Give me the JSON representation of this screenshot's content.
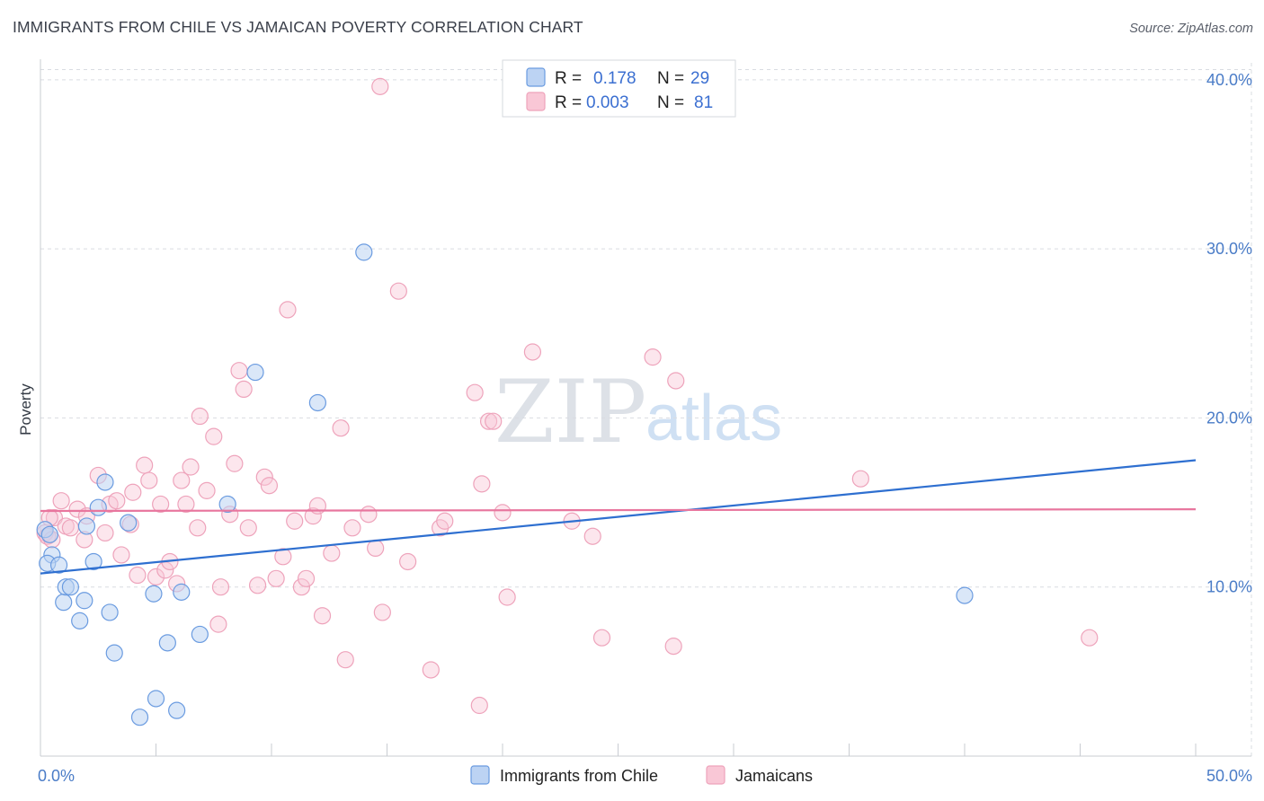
{
  "title": "IMMIGRANTS FROM CHILE VS JAMAICAN POVERTY CORRELATION CHART",
  "source": "Source: ZipAtlas.com",
  "watermark": {
    "zip": "ZIP",
    "atlas": "atlas"
  },
  "colors": {
    "blue": "#6a9be0",
    "blue_fill": "#bcd3f3",
    "blue_line": "#2e6fd0",
    "pink": "#eea3bb",
    "pink_fill": "#f9c7d6",
    "pink_line": "#e8769e",
    "tick": "#4a7cc7"
  },
  "legend": {
    "row1": {
      "r_label": "R = ",
      "r_value": "0.178",
      "n_label": "N = ",
      "n_value": "29"
    },
    "row2": {
      "r_label": "R = ",
      "r_value": "0.003",
      "n_label": "N = ",
      "n_value": "81"
    }
  },
  "chart_data": {
    "type": "scatter",
    "title": "IMMIGRANTS FROM CHILE VS JAMAICAN POVERTY CORRELATION CHART",
    "xlabel": "",
    "ylabel": "Poverty",
    "xlim": [
      0,
      50
    ],
    "ylim": [
      0,
      41
    ],
    "x_tick_labels": [
      "0.0%",
      "50.0%"
    ],
    "y_ticks": [
      10,
      20,
      30,
      40
    ],
    "y_tick_labels": [
      "10.0%",
      "20.0%",
      "30.0%",
      "40.0%"
    ],
    "grid": true,
    "legend_position": "top-center",
    "series": [
      {
        "name": "Immigrants from Chile",
        "color": "#6a9be0",
        "trend": [
          [
            0,
            10.8
          ],
          [
            50,
            17.5
          ]
        ],
        "points": [
          [
            0.2,
            13.4
          ],
          [
            0.4,
            13.1
          ],
          [
            0.5,
            11.9
          ],
          [
            0.3,
            11.4
          ],
          [
            0.8,
            11.3
          ],
          [
            1.0,
            9.1
          ],
          [
            1.1,
            10.0
          ],
          [
            1.3,
            10.0
          ],
          [
            1.7,
            8.0
          ],
          [
            1.9,
            9.2
          ],
          [
            2.0,
            13.6
          ],
          [
            2.3,
            11.5
          ],
          [
            2.5,
            14.7
          ],
          [
            2.8,
            16.2
          ],
          [
            3.0,
            8.5
          ],
          [
            3.2,
            6.1
          ],
          [
            3.8,
            13.8
          ],
          [
            4.3,
            2.3
          ],
          [
            4.9,
            9.6
          ],
          [
            5.0,
            3.4
          ],
          [
            5.5,
            6.7
          ],
          [
            5.9,
            2.7
          ],
          [
            6.1,
            9.7
          ],
          [
            6.9,
            7.2
          ],
          [
            8.1,
            14.9
          ],
          [
            9.3,
            22.7
          ],
          [
            12.0,
            20.9
          ],
          [
            14.0,
            29.8
          ],
          [
            40.0,
            9.5
          ]
        ]
      },
      {
        "name": "Jamaicans",
        "color": "#eea3bb",
        "trend": [
          [
            0,
            14.5
          ],
          [
            50,
            14.6
          ]
        ],
        "points": [
          [
            0.2,
            13.2
          ],
          [
            0.3,
            13.0
          ],
          [
            0.5,
            12.8
          ],
          [
            0.6,
            14.1
          ],
          [
            0.9,
            15.1
          ],
          [
            1.1,
            13.6
          ],
          [
            1.3,
            13.5
          ],
          [
            1.6,
            14.6
          ],
          [
            1.9,
            12.8
          ],
          [
            2.0,
            14.2
          ],
          [
            2.5,
            16.6
          ],
          [
            2.8,
            13.2
          ],
          [
            3.0,
            14.9
          ],
          [
            3.3,
            15.1
          ],
          [
            3.5,
            11.9
          ],
          [
            3.9,
            13.7
          ],
          [
            4.0,
            15.6
          ],
          [
            4.2,
            10.7
          ],
          [
            4.5,
            17.2
          ],
          [
            4.7,
            16.3
          ],
          [
            5.0,
            10.6
          ],
          [
            5.2,
            14.9
          ],
          [
            5.4,
            11.0
          ],
          [
            5.6,
            11.5
          ],
          [
            5.9,
            10.2
          ],
          [
            6.1,
            16.3
          ],
          [
            6.3,
            14.9
          ],
          [
            6.5,
            17.1
          ],
          [
            6.8,
            13.5
          ],
          [
            6.9,
            20.1
          ],
          [
            7.2,
            15.7
          ],
          [
            7.5,
            18.9
          ],
          [
            7.8,
            10.0
          ],
          [
            7.7,
            7.8
          ],
          [
            8.2,
            14.3
          ],
          [
            8.4,
            17.3
          ],
          [
            8.6,
            22.8
          ],
          [
            8.8,
            21.7
          ],
          [
            9.0,
            13.5
          ],
          [
            9.4,
            10.1
          ],
          [
            9.7,
            16.5
          ],
          [
            9.9,
            16.0
          ],
          [
            10.2,
            10.5
          ],
          [
            10.5,
            11.8
          ],
          [
            10.7,
            26.4
          ],
          [
            11.0,
            13.9
          ],
          [
            11.3,
            10.0
          ],
          [
            11.5,
            10.5
          ],
          [
            11.8,
            14.2
          ],
          [
            12.0,
            14.8
          ],
          [
            12.2,
            8.3
          ],
          [
            12.6,
            12.0
          ],
          [
            13.0,
            19.4
          ],
          [
            13.2,
            5.7
          ],
          [
            13.5,
            13.5
          ],
          [
            14.2,
            14.3
          ],
          [
            14.5,
            12.3
          ],
          [
            14.7,
            39.6
          ],
          [
            14.8,
            8.5
          ],
          [
            15.5,
            27.5
          ],
          [
            15.9,
            11.5
          ],
          [
            16.9,
            5.1
          ],
          [
            17.3,
            13.5
          ],
          [
            17.5,
            13.9
          ],
          [
            18.8,
            21.5
          ],
          [
            19.0,
            3.0
          ],
          [
            19.1,
            16.1
          ],
          [
            19.4,
            19.8
          ],
          [
            19.6,
            19.8
          ],
          [
            20.0,
            14.4
          ],
          [
            20.2,
            9.4
          ],
          [
            21.3,
            23.9
          ],
          [
            23.0,
            13.9
          ],
          [
            23.9,
            13.0
          ],
          [
            24.3,
            7.0
          ],
          [
            26.5,
            23.6
          ],
          [
            27.4,
            6.5
          ],
          [
            27.5,
            22.2
          ],
          [
            35.5,
            16.4
          ],
          [
            45.4,
            7.0
          ],
          [
            0.4,
            14.1
          ]
        ]
      }
    ]
  }
}
